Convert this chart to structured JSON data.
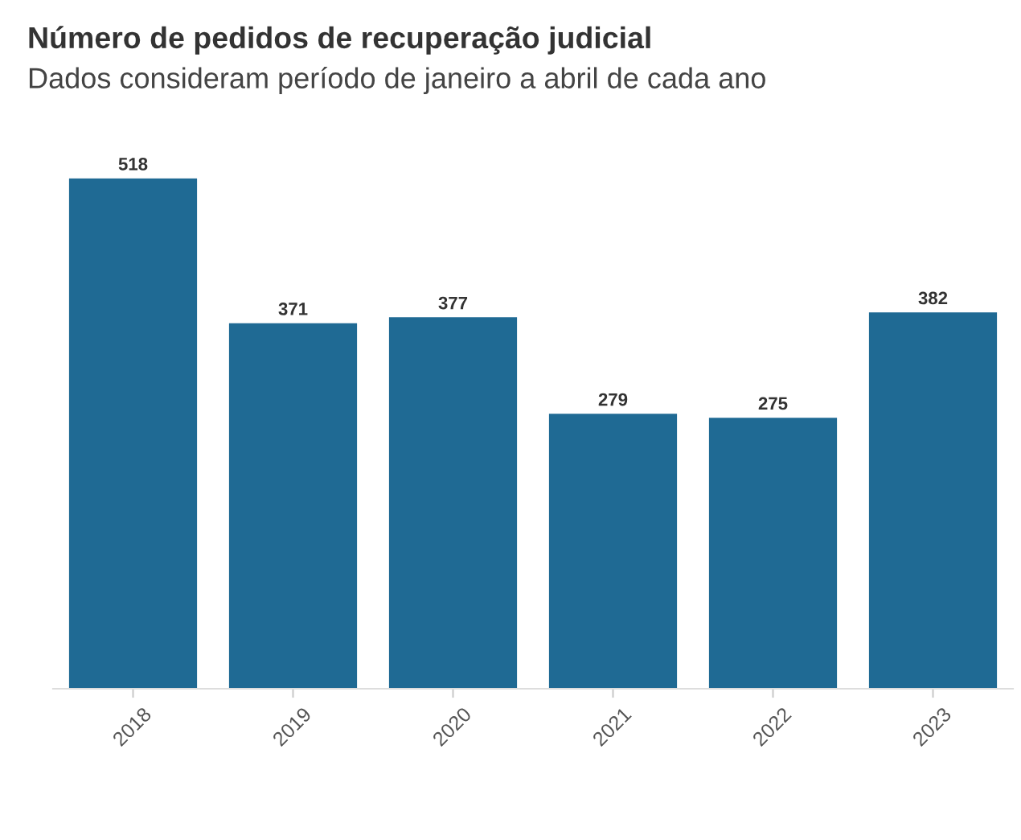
{
  "chart_data": {
    "type": "bar",
    "title": "Número de pedidos de recuperação judicial",
    "subtitle": "Dados consideram período de janeiro a abril de cada ano",
    "categories": [
      "2018",
      "2019",
      "2020",
      "2021",
      "2022",
      "2023"
    ],
    "values": [
      518,
      371,
      377,
      279,
      275,
      382
    ],
    "color": "#1f6a94",
    "data_labels": true
  }
}
